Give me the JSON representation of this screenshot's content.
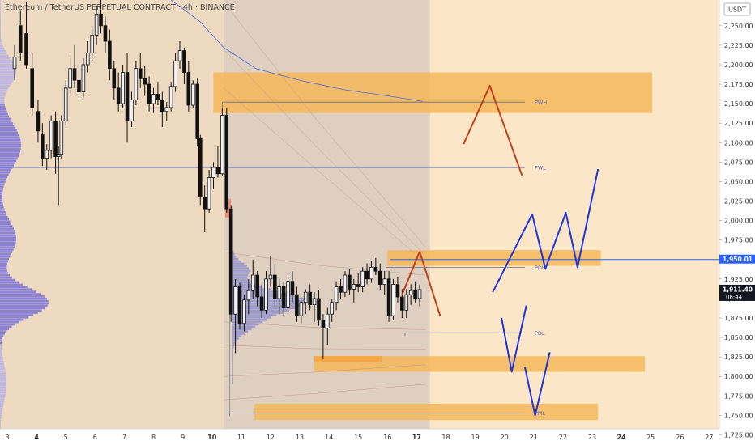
{
  "header": {
    "title": "Ethereum / TetherUS PERPETUAL CONTRACT · 4h · BINANCE"
  },
  "chart_data": {
    "type": "candlestick",
    "currency": "USDT",
    "ylim": [
      1712,
      2283
    ],
    "y_ticks": [
      2250,
      2225,
      2200,
      2175,
      2150,
      2125,
      2100,
      2075,
      2050,
      2025,
      2000,
      1975,
      1950,
      1925,
      1900,
      1875,
      1850,
      1825,
      1800,
      1775,
      1750,
      1725
    ],
    "x_ticks": [
      3,
      4,
      5,
      6,
      7,
      8,
      9,
      10,
      11,
      12,
      13,
      14,
      15,
      16,
      17,
      18,
      19,
      20,
      21,
      22,
      23,
      24,
      25,
      26,
      27
    ],
    "x_ticks_bold": [
      4,
      10,
      17,
      24
    ],
    "xlim": [
      2.75,
      27.35
    ],
    "price_tags": [
      {
        "label": "1,950.01",
        "value": 1950.01,
        "bg": "#2962ff",
        "fg": "#ffffff"
      },
      {
        "label": "1,911.40",
        "sub": "06:44",
        "value": 1911.4,
        "bg": "#131722",
        "fg": "#ffffff"
      }
    ],
    "levels": [
      {
        "label": "PWH",
        "value": 2152,
        "x_start": 10.35,
        "x_end": 20.7
      },
      {
        "label": "PWL",
        "value": 2068,
        "x_start": 2.75,
        "x_end": 20.7
      },
      {
        "label": "PDH",
        "value": 1940,
        "x_start": 15.95,
        "x_end": 20.7
      },
      {
        "label": "PDL",
        "value": 1856,
        "x_start": 16.6,
        "x_end": 20.7
      },
      {
        "label": "PML",
        "value": 1753,
        "x_start": 10.6,
        "x_end": 20.7
      }
    ],
    "horizontal_line": {
      "value": 1950.01,
      "x_start": 16.1,
      "x_end": 27.35,
      "color": "#2962ff"
    },
    "zones": [
      {
        "x": [
          10.05,
          25.05
        ],
        "y": [
          2138,
          2190
        ]
      },
      {
        "x": [
          16.0,
          23.3
        ],
        "y": [
          1942,
          1962
        ]
      },
      {
        "x": [
          13.5,
          24.8
        ],
        "y": [
          1806,
          1826
        ]
      },
      {
        "x": [
          11.45,
          23.2
        ],
        "y": [
          1744,
          1765
        ]
      }
    ],
    "zone_color": "#f5b75a",
    "small_zone": {
      "x": [
        13.5,
        15.8
      ],
      "y": [
        1819,
        1826
      ],
      "color": "#f5a540"
    },
    "red_box": {
      "x": [
        10.45,
        10.65
      ],
      "y": [
        2004,
        2028
      ],
      "color": "#f08a6a"
    },
    "scenario_paths": [
      {
        "color": "#c0401a",
        "points": [
          [
            18.6,
            2098
          ],
          [
            19.5,
            2173
          ],
          [
            20.6,
            2058
          ]
        ]
      },
      {
        "color": "#c0401a",
        "points": [
          [
            16.5,
            1905
          ],
          [
            17.1,
            1960
          ],
          [
            17.8,
            1878
          ]
        ]
      },
      {
        "color": "#2035d8",
        "points": [
          [
            19.6,
            1908
          ],
          [
            20.95,
            2008
          ],
          [
            21.4,
            1938
          ],
          [
            22.1,
            2010
          ],
          [
            22.5,
            1940
          ],
          [
            23.2,
            2066
          ]
        ]
      },
      {
        "color": "#2035d8",
        "points": [
          [
            19.9,
            1875
          ],
          [
            20.25,
            1806
          ],
          [
            20.75,
            1891
          ]
        ]
      },
      {
        "color": "#2035d8",
        "points": [
          [
            20.7,
            1812
          ],
          [
            21.05,
            1750
          ],
          [
            21.55,
            1831
          ]
        ]
      }
    ],
    "vwap_line": {
      "color": "#4a6ad8",
      "points": [
        [
          8.6,
          2283
        ],
        [
          9.6,
          2255
        ],
        [
          10.4,
          2222
        ],
        [
          11.5,
          2195
        ],
        [
          13.0,
          2180
        ],
        [
          14.5,
          2168
        ],
        [
          16.0,
          2160
        ],
        [
          17.2,
          2153
        ]
      ]
    },
    "candles": [
      {
        "x": 3.25,
        "o": 2195,
        "h": 2225,
        "l": 2180,
        "c": 2210
      },
      {
        "x": 3.45,
        "o": 2250,
        "h": 2270,
        "l": 2205,
        "c": 2215
      },
      {
        "x": 3.65,
        "o": 2240,
        "h": 2280,
        "l": 2195,
        "c": 2200
      },
      {
        "x": 3.85,
        "o": 2195,
        "h": 2215,
        "l": 2135,
        "c": 2145
      },
      {
        "x": 4.05,
        "o": 2140,
        "h": 2155,
        "l": 2100,
        "c": 2115
      },
      {
        "x": 4.2,
        "o": 2110,
        "h": 2125,
        "l": 2070,
        "c": 2080
      },
      {
        "x": 4.35,
        "o": 2080,
        "h": 2098,
        "l": 2065,
        "c": 2090
      },
      {
        "x": 4.5,
        "o": 2090,
        "h": 2135,
        "l": 2080,
        "c": 2128
      },
      {
        "x": 4.65,
        "o": 2128,
        "h": 2140,
        "l": 2060,
        "c": 2082
      },
      {
        "x": 4.75,
        "o": 2082,
        "h": 2095,
        "l": 2020,
        "c": 2085
      },
      {
        "x": 4.85,
        "o": 2085,
        "h": 2135,
        "l": 2080,
        "c": 2128
      },
      {
        "x": 5.0,
        "o": 2128,
        "h": 2180,
        "l": 2122,
        "c": 2170
      },
      {
        "x": 5.15,
        "o": 2170,
        "h": 2210,
        "l": 2160,
        "c": 2195
      },
      {
        "x": 5.3,
        "o": 2195,
        "h": 2225,
        "l": 2170,
        "c": 2180
      },
      {
        "x": 5.45,
        "o": 2180,
        "h": 2200,
        "l": 2155,
        "c": 2165
      },
      {
        "x": 5.6,
        "o": 2165,
        "h": 2208,
        "l": 2158,
        "c": 2200
      },
      {
        "x": 5.75,
        "o": 2200,
        "h": 2230,
        "l": 2190,
        "c": 2215
      },
      {
        "x": 5.9,
        "o": 2215,
        "h": 2248,
        "l": 2205,
        "c": 2238
      },
      {
        "x": 6.05,
        "o": 2238,
        "h": 2275,
        "l": 2225,
        "c": 2265
      },
      {
        "x": 6.2,
        "o": 2265,
        "h": 2285,
        "l": 2240,
        "c": 2250
      },
      {
        "x": 6.35,
        "o": 2250,
        "h": 2262,
        "l": 2215,
        "c": 2230
      },
      {
        "x": 6.5,
        "o": 2230,
        "h": 2245,
        "l": 2180,
        "c": 2195
      },
      {
        "x": 6.65,
        "o": 2195,
        "h": 2205,
        "l": 2155,
        "c": 2170
      },
      {
        "x": 6.8,
        "o": 2170,
        "h": 2190,
        "l": 2140,
        "c": 2150
      },
      {
        "x": 6.95,
        "o": 2150,
        "h": 2200,
        "l": 2145,
        "c": 2190
      },
      {
        "x": 7.1,
        "o": 2190,
        "h": 2215,
        "l": 2100,
        "c": 2128
      },
      {
        "x": 7.25,
        "o": 2128,
        "h": 2165,
        "l": 2120,
        "c": 2155
      },
      {
        "x": 7.4,
        "o": 2155,
        "h": 2205,
        "l": 2148,
        "c": 2195
      },
      {
        "x": 7.55,
        "o": 2195,
        "h": 2215,
        "l": 2170,
        "c": 2182
      },
      {
        "x": 7.7,
        "o": 2182,
        "h": 2198,
        "l": 2160,
        "c": 2175
      },
      {
        "x": 7.85,
        "o": 2175,
        "h": 2185,
        "l": 2140,
        "c": 2150
      },
      {
        "x": 8.0,
        "o": 2150,
        "h": 2170,
        "l": 2138,
        "c": 2162
      },
      {
        "x": 8.15,
        "o": 2162,
        "h": 2178,
        "l": 2148,
        "c": 2155
      },
      {
        "x": 8.3,
        "o": 2155,
        "h": 2165,
        "l": 2120,
        "c": 2140
      },
      {
        "x": 8.45,
        "o": 2140,
        "h": 2152,
        "l": 2128,
        "c": 2145
      },
      {
        "x": 8.6,
        "o": 2145,
        "h": 2178,
        "l": 2140,
        "c": 2172
      },
      {
        "x": 8.75,
        "o": 2172,
        "h": 2215,
        "l": 2165,
        "c": 2205
      },
      {
        "x": 8.9,
        "o": 2205,
        "h": 2230,
        "l": 2195,
        "c": 2218
      },
      {
        "x": 9.05,
        "o": 2218,
        "h": 2222,
        "l": 2175,
        "c": 2190
      },
      {
        "x": 9.2,
        "o": 2190,
        "h": 2205,
        "l": 2140,
        "c": 2148
      },
      {
        "x": 9.35,
        "o": 2148,
        "h": 2180,
        "l": 2145,
        "c": 2175
      },
      {
        "x": 9.5,
        "o": 2175,
        "h": 2182,
        "l": 2095,
        "c": 2105
      },
      {
        "x": 9.6,
        "o": 2105,
        "h": 2110,
        "l": 2020,
        "c": 2030
      },
      {
        "x": 9.75,
        "o": 2030,
        "h": 2045,
        "l": 1985,
        "c": 2015
      },
      {
        "x": 9.9,
        "o": 2015,
        "h": 2065,
        "l": 2010,
        "c": 2055
      },
      {
        "x": 10.05,
        "o": 2055,
        "h": 2075,
        "l": 2040,
        "c": 2068
      },
      {
        "x": 10.2,
        "o": 2068,
        "h": 2095,
        "l": 2055,
        "c": 2060
      },
      {
        "x": 10.35,
        "o": 2060,
        "h": 2145,
        "l": 2058,
        "c": 2135
      },
      {
        "x": 10.5,
        "o": 2135,
        "h": 2145,
        "l": 2010,
        "c": 2015
      },
      {
        "x": 10.65,
        "o": 2015,
        "h": 2020,
        "l": 1870,
        "c": 1880
      },
      {
        "x": 10.8,
        "o": 1880,
        "h": 1925,
        "l": 1830,
        "c": 1915
      },
      {
        "x": 10.95,
        "o": 1915,
        "h": 1920,
        "l": 1860,
        "c": 1868
      },
      {
        "x": 11.1,
        "o": 1868,
        "h": 1905,
        "l": 1858,
        "c": 1898
      },
      {
        "x": 11.25,
        "o": 1898,
        "h": 1925,
        "l": 1880,
        "c": 1910
      },
      {
        "x": 11.4,
        "o": 1910,
        "h": 1950,
        "l": 1900,
        "c": 1930
      },
      {
        "x": 11.55,
        "o": 1930,
        "h": 1935,
        "l": 1890,
        "c": 1902
      },
      {
        "x": 11.7,
        "o": 1902,
        "h": 1918,
        "l": 1875,
        "c": 1885
      },
      {
        "x": 11.85,
        "o": 1885,
        "h": 1935,
        "l": 1880,
        "c": 1925
      },
      {
        "x": 12.0,
        "o": 1925,
        "h": 1955,
        "l": 1915,
        "c": 1930
      },
      {
        "x": 12.15,
        "o": 1930,
        "h": 1945,
        "l": 1890,
        "c": 1900
      },
      {
        "x": 12.3,
        "o": 1900,
        "h": 1925,
        "l": 1880,
        "c": 1915
      },
      {
        "x": 12.45,
        "o": 1915,
        "h": 1922,
        "l": 1878,
        "c": 1888
      },
      {
        "x": 12.6,
        "o": 1888,
        "h": 1930,
        "l": 1882,
        "c": 1922
      },
      {
        "x": 12.75,
        "o": 1922,
        "h": 1935,
        "l": 1895,
        "c": 1905
      },
      {
        "x": 12.9,
        "o": 1905,
        "h": 1915,
        "l": 1870,
        "c": 1878
      },
      {
        "x": 13.05,
        "o": 1878,
        "h": 1900,
        "l": 1868,
        "c": 1895
      },
      {
        "x": 13.2,
        "o": 1895,
        "h": 1912,
        "l": 1880,
        "c": 1908
      },
      {
        "x": 13.35,
        "o": 1908,
        "h": 1918,
        "l": 1885,
        "c": 1892
      },
      {
        "x": 13.5,
        "o": 1892,
        "h": 1908,
        "l": 1870,
        "c": 1900
      },
      {
        "x": 13.65,
        "o": 1900,
        "h": 1910,
        "l": 1865,
        "c": 1872
      },
      {
        "x": 13.8,
        "o": 1872,
        "h": 1880,
        "l": 1822,
        "c": 1862
      },
      {
        "x": 13.95,
        "o": 1862,
        "h": 1888,
        "l": 1840,
        "c": 1880
      },
      {
        "x": 14.1,
        "o": 1880,
        "h": 1900,
        "l": 1870,
        "c": 1895
      },
      {
        "x": 14.25,
        "o": 1895,
        "h": 1922,
        "l": 1885,
        "c": 1915
      },
      {
        "x": 14.4,
        "o": 1915,
        "h": 1925,
        "l": 1900,
        "c": 1908
      },
      {
        "x": 14.55,
        "o": 1908,
        "h": 1935,
        "l": 1902,
        "c": 1930
      },
      {
        "x": 14.7,
        "o": 1930,
        "h": 1938,
        "l": 1905,
        "c": 1912
      },
      {
        "x": 14.85,
        "o": 1912,
        "h": 1925,
        "l": 1895,
        "c": 1918
      },
      {
        "x": 15.0,
        "o": 1918,
        "h": 1932,
        "l": 1908,
        "c": 1915
      },
      {
        "x": 15.15,
        "o": 1915,
        "h": 1940,
        "l": 1908,
        "c": 1935
      },
      {
        "x": 15.3,
        "o": 1935,
        "h": 1945,
        "l": 1918,
        "c": 1925
      },
      {
        "x": 15.45,
        "o": 1925,
        "h": 1948,
        "l": 1920,
        "c": 1940
      },
      {
        "x": 15.6,
        "o": 1940,
        "h": 1952,
        "l": 1930,
        "c": 1935
      },
      {
        "x": 15.75,
        "o": 1935,
        "h": 1945,
        "l": 1910,
        "c": 1918
      },
      {
        "x": 15.9,
        "o": 1918,
        "h": 1935,
        "l": 1905,
        "c": 1925
      },
      {
        "x": 16.05,
        "o": 1925,
        "h": 1935,
        "l": 1870,
        "c": 1878
      },
      {
        "x": 16.2,
        "o": 1878,
        "h": 1925,
        "l": 1872,
        "c": 1918
      },
      {
        "x": 16.35,
        "o": 1918,
        "h": 1928,
        "l": 1895,
        "c": 1902
      },
      {
        "x": 16.5,
        "o": 1902,
        "h": 1912,
        "l": 1875,
        "c": 1885
      },
      {
        "x": 16.65,
        "o": 1885,
        "h": 1912,
        "l": 1875,
        "c": 1905
      },
      {
        "x": 16.8,
        "o": 1905,
        "h": 1918,
        "l": 1892,
        "c": 1910
      },
      {
        "x": 16.95,
        "o": 1910,
        "h": 1922,
        "l": 1895,
        "c": 1900
      },
      {
        "x": 17.1,
        "o": 1900,
        "h": 1918,
        "l": 1890,
        "c": 1911.4
      }
    ]
  }
}
